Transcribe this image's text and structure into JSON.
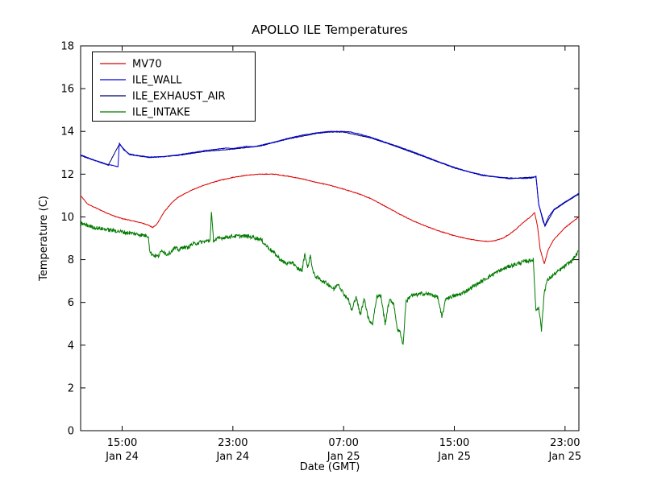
{
  "chart_data": {
    "type": "line",
    "title": "APOLLO ILE Temperatures",
    "xlabel": "Date (GMT)",
    "ylabel": "Temperature (C)",
    "ylim": [
      0,
      18
    ],
    "xlim": [
      0,
      36
    ],
    "x_unit": "hours since Jan 24 12:00 GMT",
    "grid": false,
    "legend_position": "upper-left",
    "yticks": [
      0,
      2,
      4,
      6,
      8,
      10,
      12,
      14,
      16,
      18
    ],
    "xticks": [
      {
        "t": 3,
        "time": "15:00",
        "date": "Jan 24"
      },
      {
        "t": 11,
        "time": "23:00",
        "date": "Jan 24"
      },
      {
        "t": 19,
        "time": "07:00",
        "date": "Jan 25"
      },
      {
        "t": 27,
        "time": "15:00",
        "date": "Jan 25"
      },
      {
        "t": 35,
        "time": "23:00",
        "date": "Jan 25"
      }
    ],
    "series": [
      {
        "name": "MV70",
        "color": "#dd0000",
        "noise": 0.015,
        "z": 1,
        "points": [
          [
            0,
            11.0
          ],
          [
            0.5,
            10.6
          ],
          [
            1,
            10.45
          ],
          [
            1.5,
            10.3
          ],
          [
            2,
            10.15
          ],
          [
            2.5,
            10.02
          ],
          [
            3,
            9.92
          ],
          [
            3.5,
            9.85
          ],
          [
            4,
            9.78
          ],
          [
            4.5,
            9.7
          ],
          [
            4.9,
            9.62
          ],
          [
            5.2,
            9.5
          ],
          [
            5.5,
            9.65
          ],
          [
            6,
            10.2
          ],
          [
            6.5,
            10.6
          ],
          [
            7,
            10.9
          ],
          [
            8,
            11.25
          ],
          [
            9,
            11.5
          ],
          [
            10,
            11.7
          ],
          [
            11,
            11.85
          ],
          [
            12,
            11.95
          ],
          [
            13,
            12.0
          ],
          [
            14,
            12.0
          ],
          [
            14.5,
            11.95
          ],
          [
            15,
            11.9
          ],
          [
            16,
            11.78
          ],
          [
            17,
            11.62
          ],
          [
            18,
            11.48
          ],
          [
            19,
            11.3
          ],
          [
            20,
            11.1
          ],
          [
            21,
            10.85
          ],
          [
            22,
            10.5
          ],
          [
            23,
            10.15
          ],
          [
            24,
            9.82
          ],
          [
            25,
            9.55
          ],
          [
            26,
            9.32
          ],
          [
            27,
            9.12
          ],
          [
            28,
            8.97
          ],
          [
            29,
            8.87
          ],
          [
            29.5,
            8.85
          ],
          [
            30,
            8.9
          ],
          [
            30.5,
            9.0
          ],
          [
            31,
            9.2
          ],
          [
            31.5,
            9.45
          ],
          [
            32,
            9.75
          ],
          [
            32.5,
            10.0
          ],
          [
            32.8,
            10.2
          ],
          [
            33.0,
            9.6
          ],
          [
            33.2,
            8.5
          ],
          [
            33.5,
            7.8
          ],
          [
            33.8,
            8.5
          ],
          [
            34.2,
            8.95
          ],
          [
            35,
            9.5
          ],
          [
            36,
            10.0
          ]
        ]
      },
      {
        "name": "ILE_WALL",
        "color": "#0000dd",
        "noise": 0.012,
        "z": 3,
        "points": [
          [
            0,
            12.9
          ],
          [
            1,
            12.65
          ],
          [
            2,
            12.45
          ],
          [
            2.7,
            12.35
          ],
          [
            2.8,
            13.45
          ],
          [
            3.1,
            13.15
          ],
          [
            3.5,
            12.95
          ],
          [
            4,
            12.88
          ],
          [
            5,
            12.8
          ],
          [
            6,
            12.82
          ],
          [
            7,
            12.9
          ],
          [
            8,
            13.0
          ],
          [
            9,
            13.1
          ],
          [
            10,
            13.18
          ],
          [
            10.5,
            13.22
          ],
          [
            11,
            13.2
          ],
          [
            11.5,
            13.25
          ],
          [
            12,
            13.3
          ],
          [
            12.5,
            13.28
          ],
          [
            13,
            13.35
          ],
          [
            14,
            13.5
          ],
          [
            15,
            13.68
          ],
          [
            16,
            13.82
          ],
          [
            17,
            13.93
          ],
          [
            18,
            14.0
          ],
          [
            19,
            14.0
          ],
          [
            19.5,
            13.97
          ],
          [
            20,
            13.9
          ],
          [
            21,
            13.72
          ],
          [
            22,
            13.5
          ],
          [
            23,
            13.28
          ],
          [
            24,
            13.05
          ],
          [
            25,
            12.8
          ],
          [
            26,
            12.55
          ],
          [
            27,
            12.32
          ],
          [
            28,
            12.12
          ],
          [
            29,
            11.97
          ],
          [
            30,
            11.87
          ],
          [
            31,
            11.82
          ],
          [
            32,
            11.8
          ],
          [
            32.6,
            11.82
          ],
          [
            32.9,
            11.9
          ],
          [
            33.1,
            10.6
          ],
          [
            33.4,
            9.8
          ],
          [
            33.55,
            9.6
          ],
          [
            33.8,
            10.0
          ],
          [
            34.2,
            10.35
          ],
          [
            35,
            10.7
          ],
          [
            36,
            11.1
          ]
        ]
      },
      {
        "name": "ILE_EXHAUST_AIR",
        "color": "#000066",
        "noise": 0.012,
        "z": 2,
        "points": [
          [
            0,
            12.87
          ],
          [
            2,
            12.42
          ],
          [
            2.8,
            13.4
          ],
          [
            3.5,
            12.92
          ],
          [
            5,
            12.77
          ],
          [
            7,
            12.87
          ],
          [
            9,
            13.07
          ],
          [
            11,
            13.17
          ],
          [
            13,
            13.32
          ],
          [
            15,
            13.65
          ],
          [
            17,
            13.9
          ],
          [
            18,
            13.97
          ],
          [
            19,
            13.97
          ],
          [
            21,
            13.69
          ],
          [
            23,
            13.25
          ],
          [
            25,
            12.77
          ],
          [
            27,
            12.29
          ],
          [
            29,
            11.94
          ],
          [
            31,
            11.79
          ],
          [
            32.9,
            11.87
          ],
          [
            33.1,
            10.57
          ],
          [
            33.55,
            9.57
          ],
          [
            34.2,
            10.32
          ],
          [
            35,
            10.67
          ],
          [
            36,
            11.07
          ]
        ]
      },
      {
        "name": "ILE_INTAKE",
        "color": "#007a00",
        "noise": 0.09,
        "z": 4,
        "points": [
          [
            0,
            9.7
          ],
          [
            0.5,
            9.6
          ],
          [
            1,
            9.5
          ],
          [
            1.5,
            9.45
          ],
          [
            2,
            9.4
          ],
          [
            2.5,
            9.35
          ],
          [
            3,
            9.3
          ],
          [
            3.5,
            9.25
          ],
          [
            4,
            9.2
          ],
          [
            4.5,
            9.15
          ],
          [
            4.9,
            9.1
          ],
          [
            5.0,
            8.35
          ],
          [
            5.3,
            8.2
          ],
          [
            5.6,
            8.15
          ],
          [
            5.9,
            8.45
          ],
          [
            6.2,
            8.25
          ],
          [
            6.5,
            8.35
          ],
          [
            6.8,
            8.55
          ],
          [
            7.1,
            8.45
          ],
          [
            7.4,
            8.6
          ],
          [
            7.7,
            8.55
          ],
          [
            8,
            8.7
          ],
          [
            8.5,
            8.8
          ],
          [
            9,
            8.85
          ],
          [
            9.35,
            8.9
          ],
          [
            9.45,
            10.2
          ],
          [
            9.6,
            8.9
          ],
          [
            10,
            9.0
          ],
          [
            10.5,
            9.05
          ],
          [
            11,
            9.1
          ],
          [
            11.5,
            9.1
          ],
          [
            12,
            9.1
          ],
          [
            12.5,
            9.05
          ],
          [
            13,
            8.95
          ],
          [
            13.5,
            8.6
          ],
          [
            14,
            8.3
          ],
          [
            14.3,
            8.1
          ],
          [
            14.6,
            7.9
          ],
          [
            15,
            7.8
          ],
          [
            15.3,
            7.9
          ],
          [
            15.6,
            7.6
          ],
          [
            16,
            7.5
          ],
          [
            16.2,
            8.3
          ],
          [
            16.4,
            7.6
          ],
          [
            16.6,
            8.2
          ],
          [
            16.8,
            7.4
          ],
          [
            17,
            7.2
          ],
          [
            17.5,
            7.0
          ],
          [
            18,
            6.8
          ],
          [
            18.3,
            6.6
          ],
          [
            18.6,
            6.9
          ],
          [
            19,
            6.4
          ],
          [
            19.3,
            6.2
          ],
          [
            19.6,
            5.6
          ],
          [
            19.9,
            6.3
          ],
          [
            20.2,
            5.4
          ],
          [
            20.5,
            6.2
          ],
          [
            20.8,
            5.2
          ],
          [
            21.1,
            5.0
          ],
          [
            21.4,
            6.3
          ],
          [
            21.7,
            6.3
          ],
          [
            22,
            5.0
          ],
          [
            22.3,
            6.1
          ],
          [
            22.6,
            6.0
          ],
          [
            22.9,
            4.7
          ],
          [
            23.1,
            4.6
          ],
          [
            23.3,
            4.0
          ],
          [
            23.5,
            6.0
          ],
          [
            23.8,
            6.3
          ],
          [
            24.2,
            6.35
          ],
          [
            24.6,
            6.4
          ],
          [
            25,
            6.4
          ],
          [
            25.4,
            6.35
          ],
          [
            25.8,
            6.25
          ],
          [
            26.1,
            5.3
          ],
          [
            26.4,
            6.2
          ],
          [
            26.7,
            6.25
          ],
          [
            27,
            6.3
          ],
          [
            27.5,
            6.4
          ],
          [
            28,
            6.6
          ],
          [
            28.5,
            6.8
          ],
          [
            29,
            7.0
          ],
          [
            29.5,
            7.2
          ],
          [
            30,
            7.4
          ],
          [
            30.5,
            7.55
          ],
          [
            31,
            7.7
          ],
          [
            31.5,
            7.8
          ],
          [
            32,
            7.9
          ],
          [
            32.4,
            7.95
          ],
          [
            32.7,
            8.0
          ],
          [
            32.9,
            5.6
          ],
          [
            33.1,
            5.8
          ],
          [
            33.3,
            4.7
          ],
          [
            33.5,
            6.5
          ],
          [
            33.7,
            7.0
          ],
          [
            34,
            7.2
          ],
          [
            34.5,
            7.45
          ],
          [
            35,
            7.7
          ],
          [
            35.5,
            7.95
          ],
          [
            36,
            8.4
          ]
        ]
      }
    ]
  }
}
